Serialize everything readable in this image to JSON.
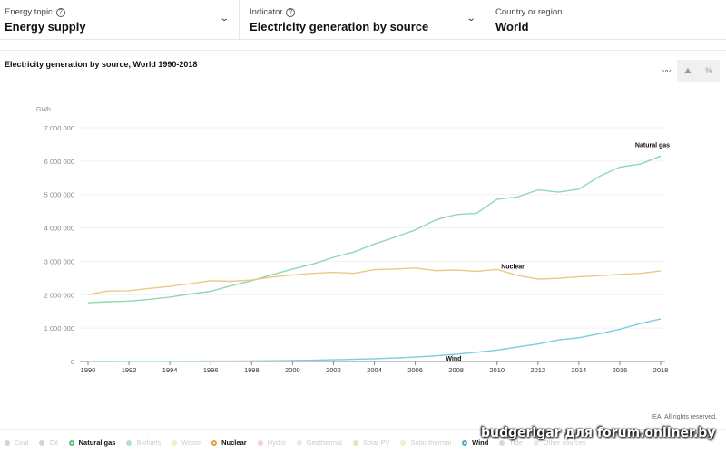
{
  "selectors": [
    {
      "label": "Energy topic",
      "value": "Energy supply",
      "has_help": true,
      "has_dropdown": true
    },
    {
      "label": "Indicator",
      "value": "Electricity generation by source",
      "has_help": true,
      "has_dropdown": true
    },
    {
      "label": "Country or region",
      "value": "World",
      "has_help": false,
      "has_dropdown": false
    }
  ],
  "help_glyph": "?",
  "chevron_glyph": "⌄",
  "view_toggle": [
    {
      "name": "line-chart-icon",
      "glyph": "〰",
      "active": true
    },
    {
      "name": "area-chart-icon",
      "glyph": "⛰",
      "active": false
    },
    {
      "name": "percent-icon",
      "glyph": "%",
      "active": false
    }
  ],
  "credit": "IEA. All rights reserved.",
  "watermark": "budgerigar для forum.onliner.by",
  "legend": [
    {
      "label": "Coal",
      "color": "#c9d6e0",
      "active": false
    },
    {
      "label": "Oil",
      "color": "#cfd5db",
      "active": false
    },
    {
      "label": "Natural gas",
      "color": "#57c27f",
      "active": true
    },
    {
      "label": "Biofuels",
      "color": "#b6e0d0",
      "active": false
    },
    {
      "label": "Waste",
      "color": "#f3efc8",
      "active": false
    },
    {
      "label": "Nuclear",
      "color": "#d9a548",
      "active": true
    },
    {
      "label": "Hydro",
      "color": "#f3d3d0",
      "active": false
    },
    {
      "label": "Geothermal",
      "color": "#ece8da",
      "active": false
    },
    {
      "label": "Solar PV",
      "color": "#ecdfc4",
      "active": false
    },
    {
      "label": "Solar thermal",
      "color": "#f5ebd0",
      "active": false
    },
    {
      "label": "Wind",
      "color": "#4fa9c7",
      "active": true
    },
    {
      "label": "Tide",
      "color": "#cfd9e5",
      "active": false
    },
    {
      "label": "Other sources",
      "color": "#e0eef0",
      "active": false
    }
  ],
  "chart_data": {
    "type": "line",
    "title": "Electricity generation by source, World 1990-2018",
    "ylabel": "GWh",
    "xlabel": "",
    "ylim": [
      0,
      7000000
    ],
    "yticks": [
      0,
      1000000,
      2000000,
      3000000,
      4000000,
      5000000,
      6000000,
      7000000
    ],
    "ytick_labels": [
      "0",
      "1 000 000",
      "2 000 000",
      "3 000 000",
      "4 000 000",
      "5 000 000",
      "6 000 000",
      "7 000 000"
    ],
    "xlim": [
      1990,
      2018
    ],
    "xticks": [
      1990,
      1992,
      1994,
      1996,
      1998,
      2000,
      2002,
      2004,
      2006,
      2008,
      2010,
      2012,
      2014,
      2016,
      2018
    ],
    "grid": true,
    "x": [
      1990,
      1991,
      1992,
      1993,
      1994,
      1995,
      1996,
      1997,
      1998,
      1999,
      2000,
      2001,
      2002,
      2003,
      2004,
      2005,
      2006,
      2007,
      2008,
      2009,
      2010,
      2011,
      2012,
      2013,
      2014,
      2015,
      2016,
      2017,
      2018
    ],
    "series": [
      {
        "name": "Natural gas",
        "color": "#8fd9ad",
        "label_year": 2017,
        "values": [
          1760000,
          1790000,
          1810000,
          1860000,
          1930000,
          2020000,
          2100000,
          2270000,
          2420000,
          2600000,
          2770000,
          2920000,
          3120000,
          3280000,
          3520000,
          3720000,
          3940000,
          4240000,
          4400000,
          4440000,
          4860000,
          4930000,
          5140000,
          5070000,
          5160000,
          5540000,
          5820000,
          5910000,
          6150000
        ]
      },
      {
        "name": "Nuclear",
        "color": "#e9c98a",
        "label_year": 2011,
        "values": [
          2010000,
          2110000,
          2120000,
          2190000,
          2250000,
          2330000,
          2420000,
          2400000,
          2440000,
          2530000,
          2590000,
          2640000,
          2670000,
          2640000,
          2750000,
          2770000,
          2800000,
          2720000,
          2740000,
          2700000,
          2760000,
          2580000,
          2470000,
          2490000,
          2540000,
          2570000,
          2610000,
          2640000,
          2710000
        ]
      },
      {
        "name": "Wind",
        "color": "#7ccbe0",
        "label_year": 2007.8,
        "values": [
          4000,
          4000,
          5000,
          6000,
          7000,
          8000,
          10000,
          12000,
          16000,
          21000,
          31000,
          38000,
          52000,
          64000,
          85000,
          104000,
          133000,
          171000,
          221000,
          276000,
          342000,
          437000,
          524000,
          645000,
          712000,
          834000,
          962000,
          1136000,
          1273000
        ]
      }
    ],
    "legend_position": "bottom"
  }
}
